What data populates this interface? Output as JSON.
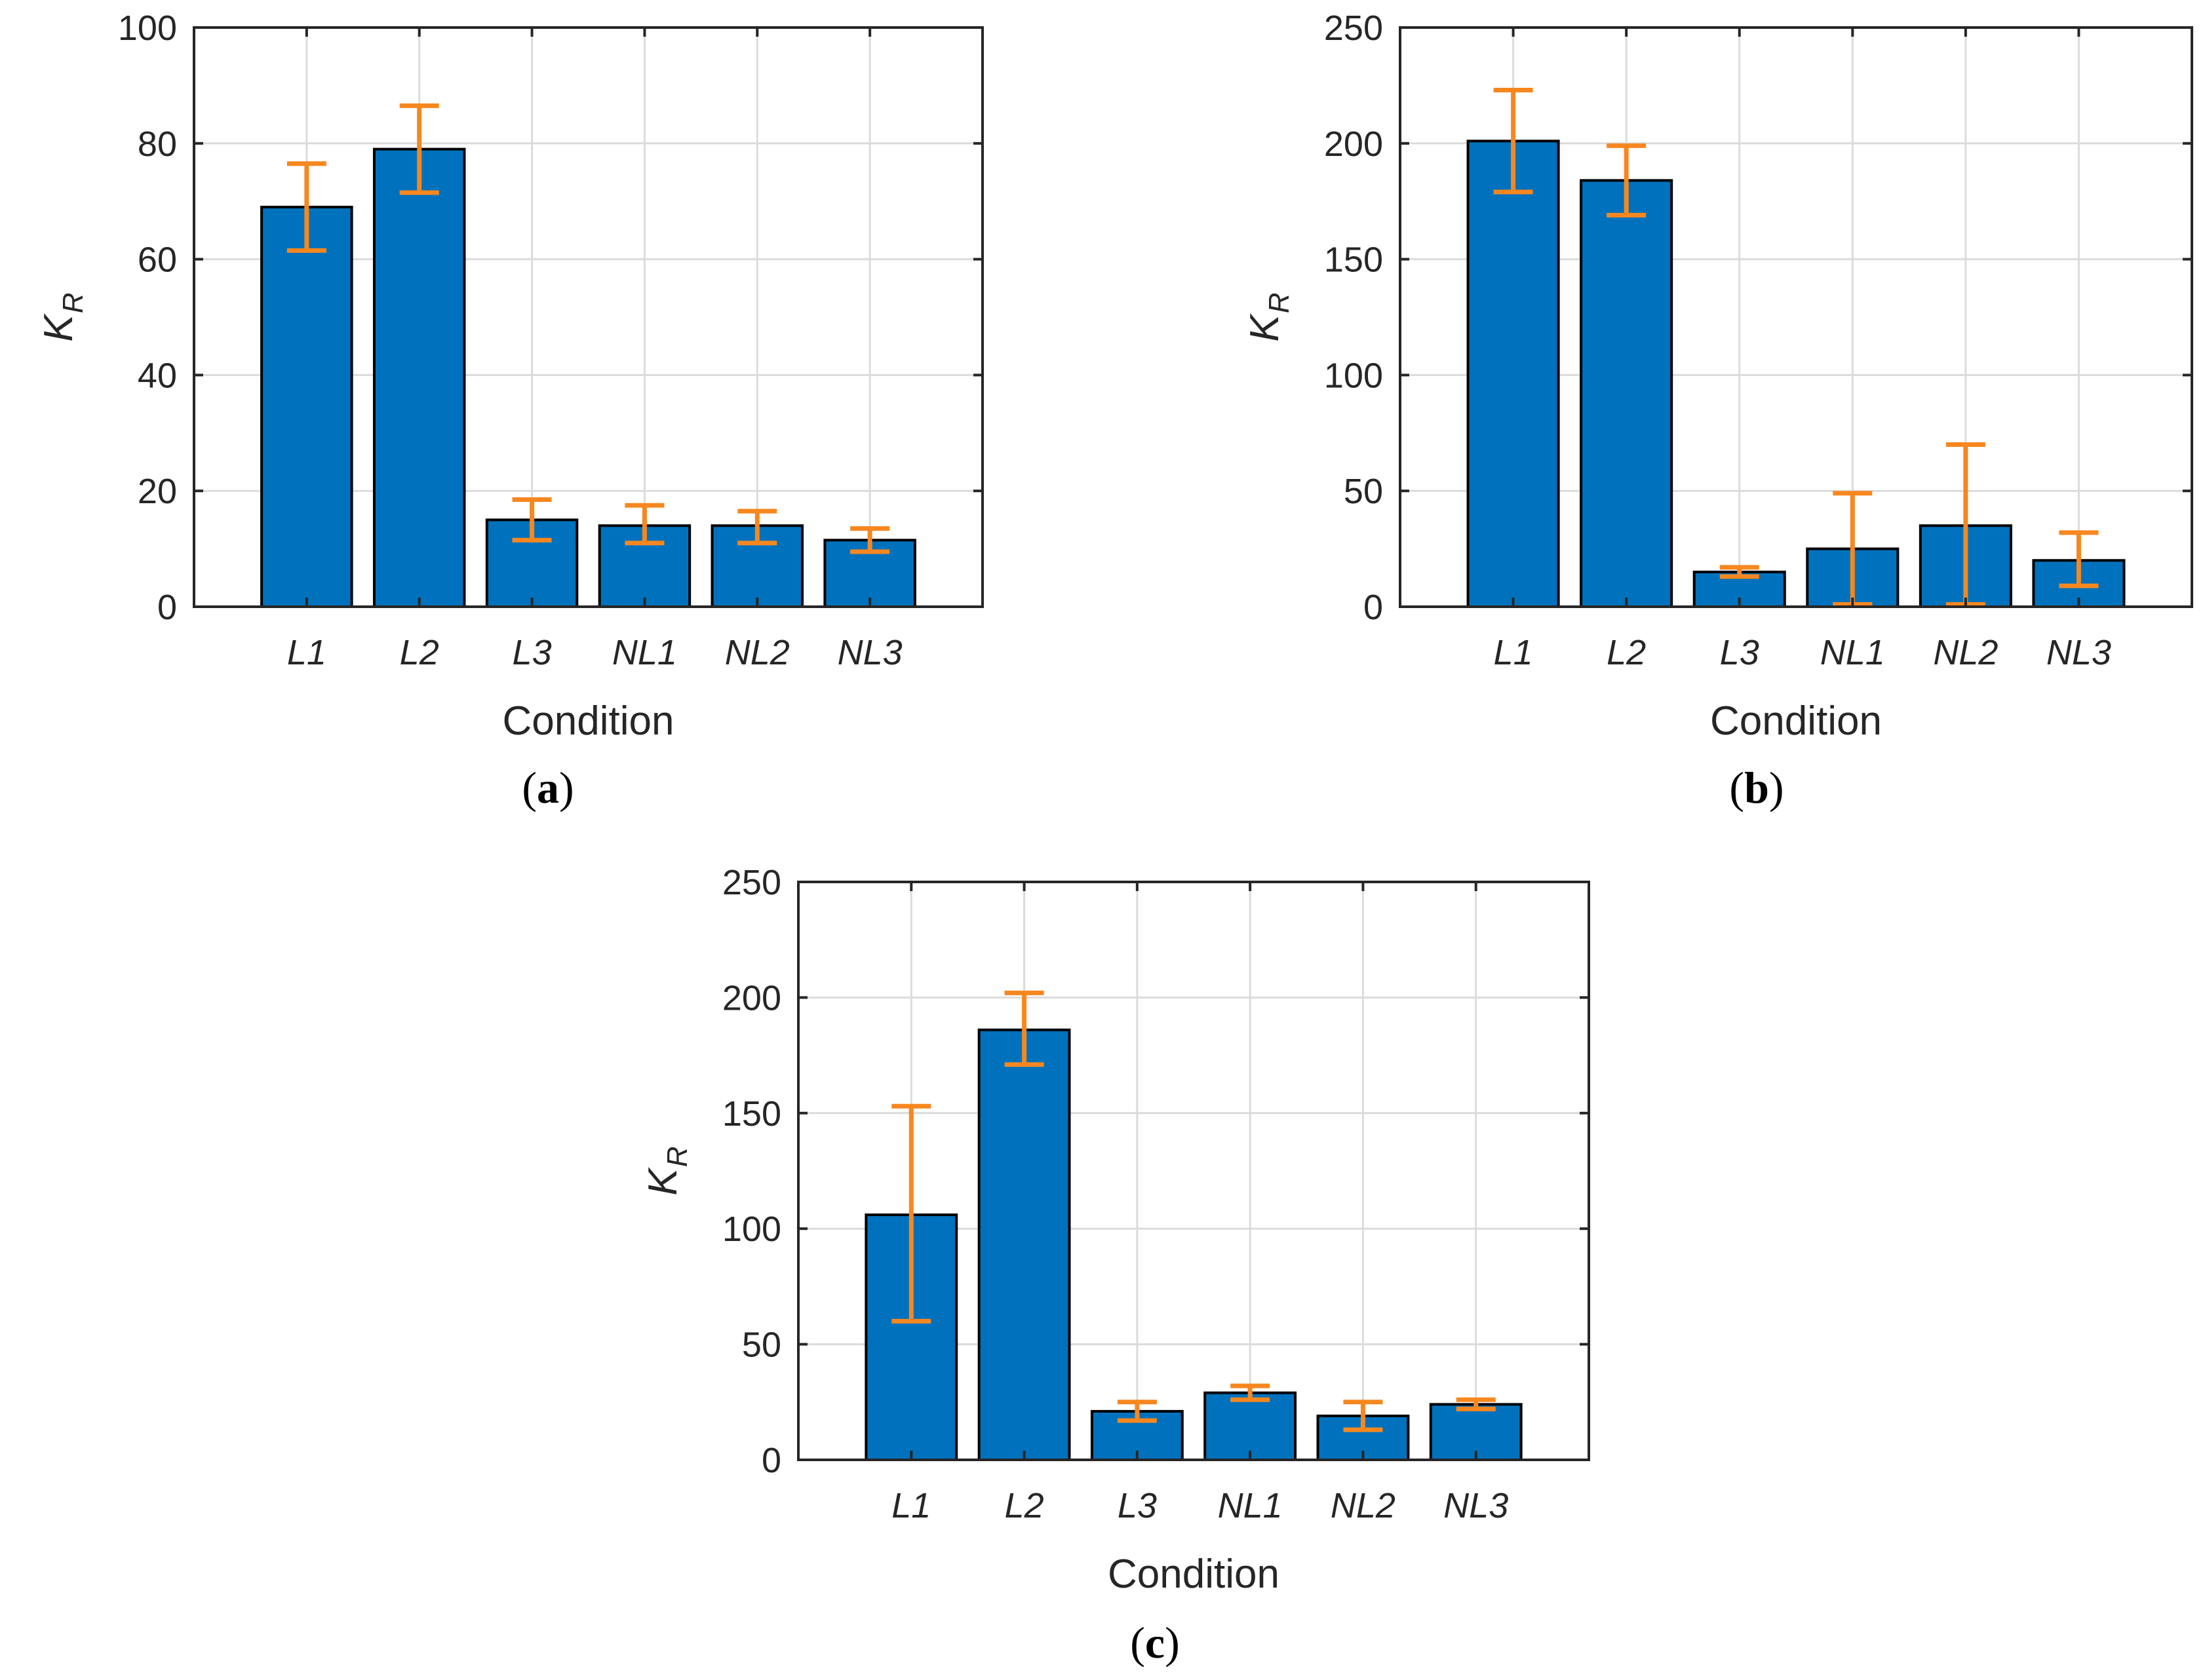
{
  "colors": {
    "bar_fill": "#0072BD",
    "bar_edge": "#000000",
    "error_bar": "#F7871F",
    "grid": "#DCDCDC",
    "axis": "#262626"
  },
  "chart_data": [
    {
      "panel": "a",
      "type": "bar",
      "categories": [
        "L1",
        "L2",
        "L3",
        "NL1",
        "NL2",
        "NL3"
      ],
      "values": [
        69,
        79,
        15,
        14,
        14,
        11.5
      ],
      "error_low": [
        61.5,
        71.5,
        11.5,
        11,
        11,
        9.5
      ],
      "error_high": [
        76.5,
        86.5,
        18.5,
        17.5,
        16.5,
        13.5
      ],
      "ylim": [
        0,
        100
      ],
      "yticks": [
        0,
        20,
        40,
        60,
        80,
        100
      ],
      "xlabel": "Condition",
      "ylabel_main": "K",
      "ylabel_sub": "R",
      "grid": true,
      "label_open": "(",
      "label_letter": "a",
      "label_close": ")"
    },
    {
      "panel": "b",
      "type": "bar",
      "categories": [
        "L1",
        "L2",
        "L3",
        "NL1",
        "NL2",
        "NL3"
      ],
      "values": [
        201,
        184,
        15,
        25,
        35,
        20
      ],
      "error_low": [
        179,
        169,
        13,
        1,
        1,
        9
      ],
      "error_high": [
        223,
        199,
        17,
        49,
        70,
        32
      ],
      "ylim": [
        0,
        250
      ],
      "yticks": [
        0,
        50,
        100,
        150,
        200,
        250
      ],
      "xlabel": "Condition",
      "ylabel_main": "K",
      "ylabel_sub": "R",
      "grid": true,
      "label_open": "(",
      "label_letter": "b",
      "label_close": ")"
    },
    {
      "panel": "c",
      "type": "bar",
      "categories": [
        "L1",
        "L2",
        "L3",
        "NL1",
        "NL2",
        "NL3"
      ],
      "values": [
        106,
        186,
        21,
        29,
        19,
        24
      ],
      "error_low": [
        60,
        171,
        17,
        26,
        13,
        22
      ],
      "error_high": [
        153,
        202,
        25,
        32,
        25,
        26
      ],
      "ylim": [
        0,
        250
      ],
      "yticks": [
        0,
        50,
        100,
        150,
        200,
        250
      ],
      "xlabel": "Condition",
      "ylabel_main": "K",
      "ylabel_sub": "R",
      "grid": true,
      "label_open": "(",
      "label_letter": "c",
      "label_close": ")"
    }
  ]
}
